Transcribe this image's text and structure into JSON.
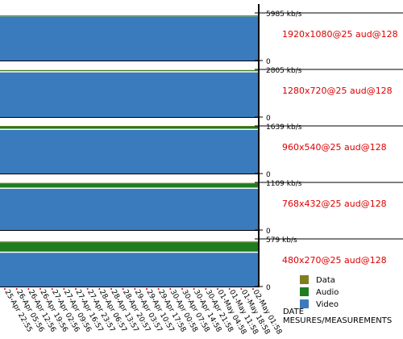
{
  "chart_data": {
    "type": "area",
    "stacked": true,
    "x_axis_title": "DATE MESURES/MEASUREMENTS",
    "x_ticks": [
      "25-Apr 22:55",
      "26-Apr 05:56",
      "26-Apr 12:56",
      "26-Apr 19:56",
      "27-Apr 02:56",
      "27-Apr 09:56",
      "27-Apr 16:57",
      "27-Apr 23:57",
      "28-Apr 06:57",
      "28-Apr 13:57",
      "28-Apr 20:57",
      "29-Apr 03:57",
      "29-Apr 10:57",
      "29-Apr 17:58",
      "30-Apr 00:58",
      "30-Apr 07:58",
      "30-Apr 14:58",
      "30-Apr 21:58",
      "01-May 04:58",
      "01-May 11:58",
      "01-May 18:58",
      "02-May 01:58"
    ],
    "legend": [
      {
        "name": "Data",
        "color": "#7f7f1f"
      },
      {
        "name": "Audio",
        "color": "#1e7d1e"
      },
      {
        "name": "Video",
        "color": "#3a7bbd"
      }
    ],
    "legend_position": "bottom-right",
    "panels": [
      {
        "rendition": "1920x1080@25 aud@128",
        "max_label": "5985 kb/s",
        "min_label": "0",
        "ymax": 5985,
        "video": 5520,
        "audio": 128,
        "data": 10
      },
      {
        "rendition": "1280x720@25 aud@128",
        "max_label": "2805 kb/s",
        "min_label": "0",
        "ymax": 2805,
        "video": 2630,
        "audio": 128,
        "data": 10
      },
      {
        "rendition": "960x540@25 aud@128",
        "max_label": "1639 kb/s",
        "min_label": "0",
        "ymax": 1639,
        "video": 1500,
        "audio": 128,
        "data": 10
      },
      {
        "rendition": "768x432@25 aud@128",
        "max_label": "1109 kb/s",
        "min_label": "0",
        "ymax": 1109,
        "video": 960,
        "audio": 128,
        "data": 10
      },
      {
        "rendition": "480x270@25 aud@128",
        "max_label": "579 kb/s",
        "min_label": "0",
        "ymax": 579,
        "video": 410,
        "audio": 128,
        "data": 10
      }
    ]
  }
}
